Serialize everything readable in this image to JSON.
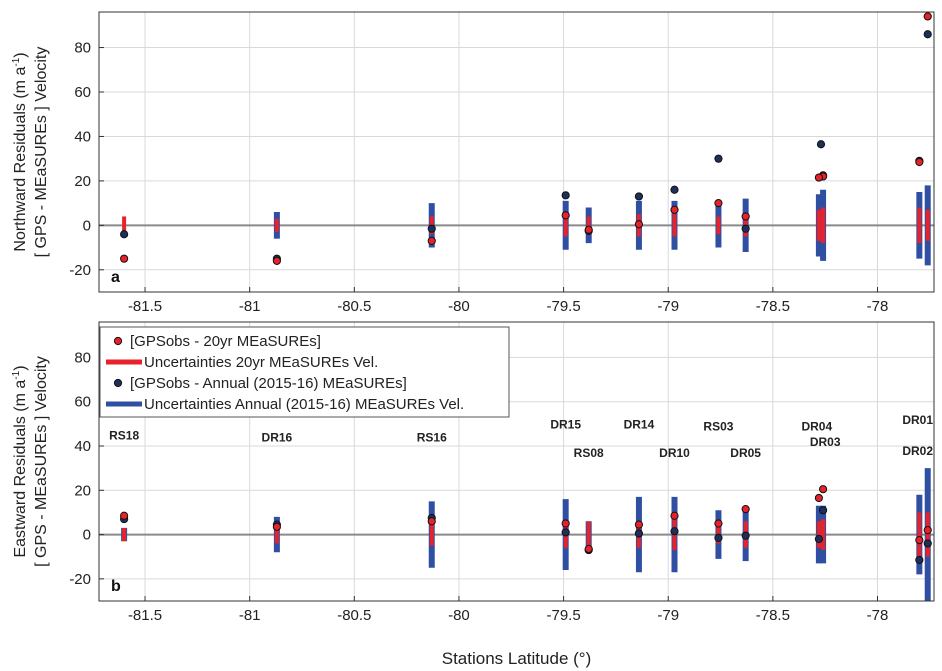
{
  "chart_data": [
    {
      "panel": "a",
      "type": "scatter",
      "xlabel": "",
      "ylabel_line1": "Northward Residuals (m a",
      "ylabel_sup": "-1",
      "ylabel_line1_end": ")",
      "ylabel_line2": "[ GPS - MEaSUREs ] Velocity",
      "xlim": [
        -81.72,
        -77.73
      ],
      "ylim": [
        -30,
        96
      ],
      "xticks": [
        -81.5,
        -81,
        -80.5,
        -80,
        -79.5,
        -79,
        -78.5,
        -78
      ],
      "xtick_labels": [
        "-81.5",
        "-81",
        "-80.5",
        "-80",
        "-79.5",
        "-79",
        "-78.5",
        "-78"
      ],
      "yticks": [
        -20,
        0,
        20,
        40,
        60,
        80
      ],
      "ytick_labels": [
        "-20",
        "0",
        "20",
        "40",
        "60",
        "80"
      ],
      "grid": true,
      "series": [
        {
          "label": "GPSobs - 20yr",
          "style": "red-point",
          "points": [
            [
              -81.6,
              -15
            ],
            [
              -80.87,
              -16
            ],
            [
              -80.13,
              -7
            ],
            [
              -79.49,
              4.5
            ],
            [
              -79.38,
              -2
            ],
            [
              -79.14,
              0.5
            ],
            [
              -78.97,
              7
            ],
            [
              -78.76,
              10
            ],
            [
              -78.63,
              4
            ],
            [
              -78.26,
              22
            ],
            [
              -78.28,
              21.5
            ],
            [
              -77.8,
              28.5
            ],
            [
              -77.76,
              94
            ]
          ]
        },
        {
          "label": "GPSobs - Annual",
          "style": "blue-point",
          "points": [
            [
              -81.6,
              -4
            ],
            [
              -80.87,
              -15
            ],
            [
              -80.13,
              -1.5
            ],
            [
              -79.49,
              13.5
            ],
            [
              -79.38,
              -2.5
            ],
            [
              -79.14,
              13
            ],
            [
              -78.97,
              16
            ],
            [
              -78.76,
              30
            ],
            [
              -78.63,
              -1.5
            ],
            [
              -78.27,
              36.5
            ],
            [
              -78.26,
              22.5
            ],
            [
              -77.8,
              29
            ],
            [
              -77.76,
              86
            ]
          ]
        },
        {
          "label": "Uncertainties Annual",
          "style": "blue-bar",
          "bars": [
            [
              -80.87,
              -6,
              6
            ],
            [
              -80.13,
              -10,
              10
            ],
            [
              -79.49,
              -11,
              11
            ],
            [
              -79.38,
              -8,
              8
            ],
            [
              -79.14,
              -11,
              11
            ],
            [
              -78.97,
              -11,
              11
            ],
            [
              -78.76,
              -10,
              10
            ],
            [
              -78.63,
              -12,
              12
            ],
            [
              -78.28,
              -14,
              14
            ],
            [
              -78.26,
              -16,
              16
            ],
            [
              -77.8,
              -15,
              15
            ],
            [
              -77.76,
              -18,
              18
            ]
          ]
        },
        {
          "label": "Uncertainties 20yr",
          "style": "red-bar",
          "bars": [
            [
              -81.6,
              -4,
              4
            ],
            [
              -80.87,
              -3,
              3
            ],
            [
              -80.13,
              -4,
              4
            ],
            [
              -79.49,
              -5,
              5
            ],
            [
              -79.38,
              -4,
              4
            ],
            [
              -79.14,
              -5,
              5
            ],
            [
              -78.97,
              -5,
              5
            ],
            [
              -78.76,
              -4,
              4
            ],
            [
              -78.63,
              -5,
              5
            ],
            [
              -78.28,
              -7,
              7
            ],
            [
              -78.26,
              -8,
              8
            ],
            [
              -77.8,
              -8,
              8
            ],
            [
              -77.76,
              -7,
              7
            ]
          ]
        }
      ],
      "station_labels": []
    },
    {
      "panel": "b",
      "type": "scatter",
      "xlabel": "Stations Latitude (°)",
      "ylabel_line1": "Eastward Residuals  (m a",
      "ylabel_sup": "-1",
      "ylabel_line1_end": ")",
      "ylabel_line2": "[ GPS - MEaSUREs ] Velocity",
      "xlim": [
        -81.72,
        -77.73
      ],
      "ylim": [
        -30,
        96
      ],
      "xticks": [
        -81.5,
        -81,
        -80.5,
        -80,
        -79.5,
        -79,
        -78.5,
        -78
      ],
      "xtick_labels": [
        "-81.5",
        "-81",
        "-80.5",
        "-80",
        "-79.5",
        "-79",
        "-78.5",
        "-78"
      ],
      "yticks": [
        -20,
        0,
        20,
        40,
        60,
        80
      ],
      "ytick_labels": [
        "-20",
        "0",
        "20",
        "40",
        "60",
        "80"
      ],
      "grid": true,
      "series": [
        {
          "label": "GPSobs - 20yr",
          "style": "red-point",
          "points": [
            [
              -81.6,
              8.5
            ],
            [
              -80.87,
              3.5
            ],
            [
              -80.13,
              6
            ],
            [
              -79.49,
              5
            ],
            [
              -79.38,
              -6.5
            ],
            [
              -79.14,
              4.5
            ],
            [
              -78.97,
              8.5
            ],
            [
              -78.76,
              5
            ],
            [
              -78.63,
              11.5
            ],
            [
              -78.28,
              16.5
            ],
            [
              -78.26,
              20.5
            ],
            [
              -77.8,
              -2.5
            ],
            [
              -77.76,
              2
            ]
          ]
        },
        {
          "label": "GPSobs - Annual",
          "style": "blue-point",
          "points": [
            [
              -81.6,
              7
            ],
            [
              -80.87,
              4.5
            ],
            [
              -80.13,
              7.5
            ],
            [
              -79.49,
              1
            ],
            [
              -79.38,
              -7
            ],
            [
              -79.14,
              0.5
            ],
            [
              -78.97,
              1.5
            ],
            [
              -78.76,
              -1.5
            ],
            [
              -78.63,
              -0.5
            ],
            [
              -78.28,
              -2
            ],
            [
              -78.26,
              11
            ],
            [
              -77.8,
              -11.5
            ],
            [
              -77.76,
              -4
            ]
          ]
        },
        {
          "label": "Uncertainties Annual",
          "style": "blue-bar",
          "bars": [
            [
              -81.6,
              -3,
              3
            ],
            [
              -80.87,
              -8,
              8
            ],
            [
              -80.13,
              -15,
              15
            ],
            [
              -79.49,
              -16,
              16
            ],
            [
              -79.38,
              -6,
              6
            ],
            [
              -79.14,
              -17,
              17
            ],
            [
              -78.97,
              -17,
              17
            ],
            [
              -78.76,
              -11,
              11
            ],
            [
              -78.63,
              -12,
              12
            ],
            [
              -78.28,
              -13,
              13
            ],
            [
              -78.26,
              -13,
              13
            ],
            [
              -77.8,
              -18,
              18
            ],
            [
              -77.76,
              -30,
              30
            ]
          ]
        },
        {
          "label": "Uncertainties 20yr",
          "style": "red-bar",
          "bars": [
            [
              -81.6,
              -3,
              3
            ],
            [
              -80.87,
              -4,
              4
            ],
            [
              -80.13,
              -5,
              5
            ],
            [
              -79.49,
              -6,
              6
            ],
            [
              -79.38,
              -6,
              6
            ],
            [
              -79.14,
              -6,
              6
            ],
            [
              -78.97,
              -7,
              7
            ],
            [
              -78.76,
              -4,
              4
            ],
            [
              -78.63,
              -6,
              6
            ],
            [
              -78.28,
              -6,
              6
            ],
            [
              -78.26,
              -7,
              7
            ],
            [
              -77.8,
              -10,
              10
            ],
            [
              -77.76,
              -10,
              10
            ]
          ]
        }
      ],
      "station_labels": [
        {
          "text": "RS18",
          "x": -81.6,
          "y": 43
        },
        {
          "text": "DR16",
          "x": -80.87,
          "y": 42
        },
        {
          "text": "RS16",
          "x": -80.13,
          "y": 42
        },
        {
          "text": "DR15",
          "x": -79.49,
          "y": 48
        },
        {
          "text": "RS08",
          "x": -79.38,
          "y": 35
        },
        {
          "text": "DR14",
          "x": -79.14,
          "y": 48
        },
        {
          "text": "DR10",
          "x": -78.97,
          "y": 35
        },
        {
          "text": "RS03",
          "x": -78.76,
          "y": 47
        },
        {
          "text": "DR05",
          "x": -78.63,
          "y": 35
        },
        {
          "text": "DR04",
          "x": -78.29,
          "y": 47
        },
        {
          "text": "DR03",
          "x": -78.25,
          "y": 40
        },
        {
          "text": "DR02",
          "x": -77.8,
          "y": 36
        },
        {
          "text": "DR01",
          "x": -77.73,
          "y": 50
        }
      ]
    }
  ],
  "panels": {
    "a": {
      "letter": "a"
    },
    "b": {
      "letter": "b"
    }
  },
  "legend": {
    "items": [
      {
        "label": "[GPSobs - 20yr MEaSUREs]",
        "style": "red-point"
      },
      {
        "label": "Uncertainties 20yr MEaSUREs Vel.",
        "style": "red-bar"
      },
      {
        "label": "[GPSobs - Annual (2015-16) MEaSUREs]",
        "style": "blue-point"
      },
      {
        "label": "Uncertainties Annual (2015-16) MEaSUREs Vel.",
        "style": "blue-bar"
      }
    ]
  },
  "colors": {
    "red": "#e8222a",
    "blue": "#2f4fa3",
    "navy": "#1f2f5c",
    "zero_line": "#8a8a8a",
    "grid": "#d9d9d9",
    "axis": "#333333"
  }
}
